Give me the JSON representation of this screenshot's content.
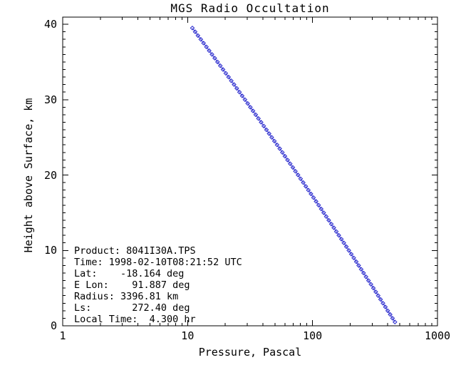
{
  "window": {
    "background": "#FFFFFF",
    "foreground": "#000000"
  },
  "title": "MGS Radio Occultation",
  "axes": {
    "x": {
      "label": "Pressure, Pascal",
      "scale": "log",
      "min": 1,
      "max": 1000,
      "major_ticks": [
        1,
        10,
        100,
        1000
      ],
      "tick_labels": [
        "1",
        "10",
        "100",
        "1000"
      ]
    },
    "y": {
      "label": "Height above Surface, km",
      "scale": "linear",
      "min": 0,
      "max": 40.95,
      "major_ticks": [
        0,
        10,
        20,
        30,
        40
      ],
      "tick_labels": [
        "0",
        "10",
        "20",
        "30",
        "40"
      ],
      "minor_step": 1
    }
  },
  "annotation": {
    "lines": [
      "Product: 8041I30A.TPS",
      "Time: 1998-02-10T08:21:52 UTC",
      "Lat:    -18.164 deg",
      "E Lon:    91.887 deg",
      "Radius: 3396.81 km",
      "Ls:       272.40 deg",
      "Local Time:  4.300 hr"
    ]
  },
  "chart_data": {
    "type": "scatter",
    "title": "MGS Radio Occultation",
    "xlabel": "Pressure, Pascal",
    "ylabel": "Height above Surface, km",
    "xscale": "log",
    "xlim": [
      1,
      1000
    ],
    "ylim": [
      0,
      40.95
    ],
    "grid": false,
    "legend": "none",
    "marker": "open-diamond",
    "connect_points": true,
    "series_color": "#2222CC",
    "axis_color": "#000000",
    "points_format": [
      "pressure_pascal",
      "height_km"
    ],
    "points": [
      [
        10.91,
        39.5
      ],
      [
        11.49,
        39.0
      ],
      [
        12.1,
        38.5
      ],
      [
        12.75,
        38.0
      ],
      [
        13.42,
        37.5
      ],
      [
        14.13,
        37.0
      ],
      [
        14.88,
        36.5
      ],
      [
        15.66,
        36.0
      ],
      [
        16.49,
        35.5
      ],
      [
        17.35,
        35.0
      ],
      [
        18.26,
        34.5
      ],
      [
        19.21,
        34.0
      ],
      [
        20.21,
        33.5
      ],
      [
        21.26,
        33.0
      ],
      [
        22.37,
        32.5
      ],
      [
        23.53,
        32.0
      ],
      [
        24.74,
        31.5
      ],
      [
        26.01,
        31.0
      ],
      [
        27.35,
        30.5
      ],
      [
        28.76,
        30.0
      ],
      [
        30.23,
        29.5
      ],
      [
        31.77,
        29.0
      ],
      [
        33.39,
        28.5
      ],
      [
        35.09,
        28.0
      ],
      [
        36.87,
        27.5
      ],
      [
        38.74,
        27.0
      ],
      [
        40.7,
        26.5
      ],
      [
        42.75,
        26.0
      ],
      [
        44.9,
        25.5
      ],
      [
        47.15,
        25.0
      ],
      [
        49.51,
        24.5
      ],
      [
        51.99,
        24.0
      ],
      [
        54.58,
        23.5
      ],
      [
        57.3,
        23.0
      ],
      [
        60.14,
        22.5
      ],
      [
        63.12,
        22.0
      ],
      [
        66.24,
        21.5
      ],
      [
        69.5,
        21.0
      ],
      [
        72.93,
        20.5
      ],
      [
        76.51,
        20.0
      ],
      [
        80.26,
        19.5
      ],
      [
        84.18,
        19.0
      ],
      [
        88.28,
        18.5
      ],
      [
        92.58,
        18.0
      ],
      [
        97.07,
        17.5
      ],
      [
        101.8,
        17.0
      ],
      [
        106.7,
        16.5
      ],
      [
        111.8,
        16.0
      ],
      [
        117.2,
        15.5
      ],
      [
        122.8,
        15.0
      ],
      [
        128.7,
        14.5
      ],
      [
        134.8,
        14.0
      ],
      [
        141.3,
        13.5
      ],
      [
        148.0,
        13.0
      ],
      [
        155.0,
        12.5
      ],
      [
        162.3,
        12.0
      ],
      [
        170.0,
        11.5
      ],
      [
        178.0,
        11.0
      ],
      [
        186.4,
        10.5
      ],
      [
        195.1,
        10.0
      ],
      [
        204.2,
        9.5
      ],
      [
        213.8,
        9.0
      ],
      [
        223.7,
        8.5
      ],
      [
        234.1,
        8.0
      ],
      [
        244.9,
        7.5
      ],
      [
        256.2,
        7.0
      ],
      [
        268.0,
        6.5
      ],
      [
        280.4,
        6.0
      ],
      [
        293.2,
        5.5
      ],
      [
        306.6,
        5.0
      ],
      [
        320.6,
        4.5
      ],
      [
        335.2,
        4.0
      ],
      [
        350.4,
        3.5
      ],
      [
        366.3,
        3.0
      ],
      [
        382.9,
        2.5
      ],
      [
        400.1,
        2.0
      ],
      [
        418.1,
        1.5
      ],
      [
        436.9,
        1.0
      ],
      [
        456.4,
        0.5
      ]
    ]
  }
}
